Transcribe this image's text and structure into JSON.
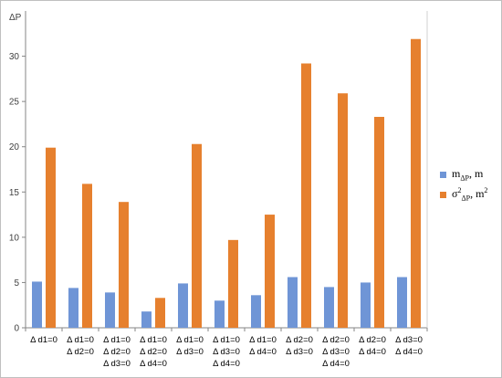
{
  "chart_data": {
    "type": "bar",
    "ylabel": "ΔP",
    "ylim": [
      0,
      35
    ],
    "yticks": [
      0,
      5,
      10,
      15,
      20,
      25,
      30
    ],
    "grid": false,
    "legend_position": "right",
    "categories": [
      [
        "Δ d1=0"
      ],
      [
        "Δ d1=0",
        "Δ d2=0"
      ],
      [
        "Δ d1=0",
        "Δ d2=0",
        "Δ d3=0"
      ],
      [
        "Δ d1=0",
        "Δ d2=0",
        "Δ d4=0"
      ],
      [
        "Δ d1=0",
        "Δ d3=0"
      ],
      [
        "Δ d1=0",
        "Δ d3=0",
        "Δ d4=0"
      ],
      [
        "Δ d1=0",
        "Δ d4=0"
      ],
      [
        "Δ d2=0",
        "Δ d3=0"
      ],
      [
        "Δ d2=0",
        "Δ d3=0",
        "Δ d4=0"
      ],
      [
        "Δ d2=0",
        "Δ d4=0"
      ],
      [
        "Δ d3=0",
        "Δ d4=0"
      ]
    ],
    "series": [
      {
        "name": "mΔP, m",
        "color": "#6f95d6",
        "values": [
          5.1,
          4.4,
          3.9,
          1.8,
          4.9,
          3.0,
          3.6,
          5.6,
          4.5,
          5.0,
          5.6
        ]
      },
      {
        "name": "σ2ΔP, m2",
        "color": "#e6802e",
        "values": [
          19.9,
          15.9,
          13.9,
          3.3,
          20.3,
          9.7,
          12.5,
          29.2,
          25.9,
          23.3,
          31.9
        ]
      }
    ]
  },
  "legend": {
    "m_base": "m",
    "m_sub": "ΔP",
    "m_tail": ", m",
    "s_base": "σ",
    "s_sup": "2",
    "s_sub": "ΔP",
    "s_tail": ", m",
    "s_tail_sup": "2"
  }
}
